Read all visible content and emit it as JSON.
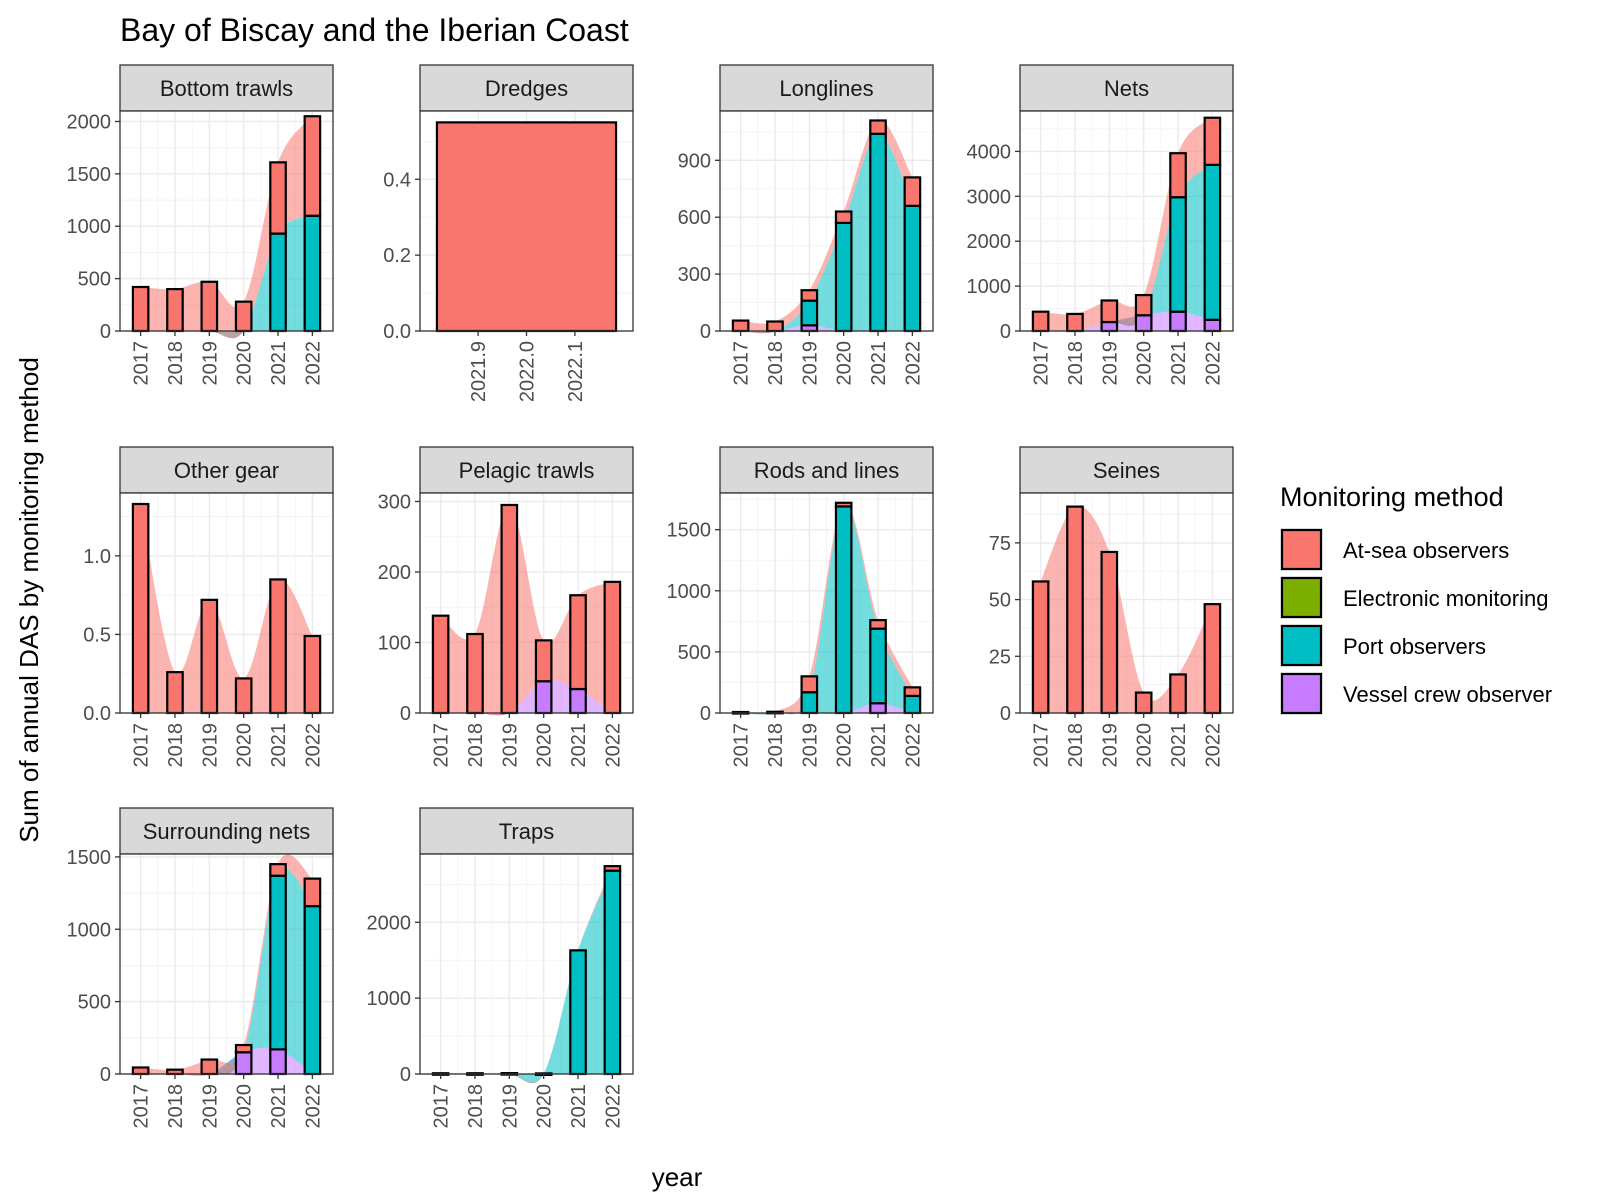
{
  "title": "Bay of Biscay and the Iberian Coast",
  "xlabel": "year",
  "ylabel": "Sum of annual DAS by monitoring method",
  "legend": {
    "title": "Monitoring method",
    "placement": "right",
    "items": [
      {
        "name": "At-sea observers",
        "color": "#F8766D"
      },
      {
        "name": "Electronic monitoring",
        "color": "#7CAE00"
      },
      {
        "name": "Port observers",
        "color": "#00BFC4"
      },
      {
        "name": "Vessel crew observer",
        "color": "#C77CFF"
      }
    ]
  },
  "chart_data": {
    "type": "bar",
    "stacked": true,
    "with_smoothed_area": true,
    "grid": true,
    "facets": [
      {
        "name": "Bottom trawls",
        "x": [
          "2017",
          "2018",
          "2019",
          "2020",
          "2021",
          "2022"
        ],
        "yticks": [
          0,
          500,
          1000,
          1500,
          2000
        ],
        "ylim": [
          0,
          2100
        ],
        "series": [
          {
            "name": "At-sea observers",
            "values": [
              420,
              400,
              470,
              280,
              680,
              950
            ]
          },
          {
            "name": "Port observers",
            "values": [
              0,
              0,
              0,
              0,
              930,
              1100
            ]
          }
        ]
      },
      {
        "name": "Dredges",
        "x": [
          "2021.9",
          "2022.0",
          "2022.1"
        ],
        "continuous_x": true,
        "xlim": [
          2021.78,
          2022.22
        ],
        "bar_x": 2022.0,
        "bar_width": 0.37,
        "yticks": [
          0.0,
          0.2,
          0.4
        ],
        "ylim": [
          0,
          0.58
        ],
        "series": [
          {
            "name": "At-sea observers",
            "values": [
              0.55
            ]
          }
        ]
      },
      {
        "name": "Longlines",
        "x": [
          "2017",
          "2018",
          "2019",
          "2020",
          "2021",
          "2022"
        ],
        "yticks": [
          0,
          300,
          600,
          900
        ],
        "ylim": [
          0,
          1160
        ],
        "series": [
          {
            "name": "At-sea observers",
            "values": [
              55,
              50,
              55,
              60,
              70,
              150
            ]
          },
          {
            "name": "Port observers",
            "values": [
              0,
              0,
              130,
              570,
              1040,
              660
            ]
          },
          {
            "name": "Vessel crew observer",
            "values": [
              0,
              0,
              30,
              0,
              0,
              0
            ]
          }
        ]
      },
      {
        "name": "Nets",
        "x": [
          "2017",
          "2018",
          "2019",
          "2020",
          "2021",
          "2022"
        ],
        "yticks": [
          0,
          1000,
          2000,
          3000,
          4000
        ],
        "ylim": [
          0,
          4900
        ],
        "series": [
          {
            "name": "At-sea observers",
            "values": [
              430,
              380,
              480,
              450,
              980,
              1050
            ]
          },
          {
            "name": "Port observers",
            "values": [
              0,
              0,
              0,
              0,
              2550,
              3450
            ]
          },
          {
            "name": "Vessel crew observer",
            "values": [
              0,
              0,
              200,
              350,
              430,
              250
            ]
          }
        ]
      },
      {
        "name": "Other gear",
        "x": [
          "2017",
          "2018",
          "2019",
          "2020",
          "2021",
          "2022"
        ],
        "yticks": [
          0.0,
          0.5,
          1.0
        ],
        "ylim": [
          0,
          1.4
        ],
        "series": [
          {
            "name": "At-sea observers",
            "values": [
              1.33,
              0.26,
              0.72,
              0.22,
              0.85,
              0.49
            ]
          }
        ]
      },
      {
        "name": "Pelagic trawls",
        "x": [
          "2017",
          "2018",
          "2019",
          "2020",
          "2021",
          "2022"
        ],
        "yticks": [
          0,
          100,
          200,
          300
        ],
        "ylim": [
          0,
          312
        ],
        "series": [
          {
            "name": "At-sea observers",
            "values": [
              138,
              112,
              295,
              58,
              133,
              186
            ]
          },
          {
            "name": "Vessel crew observer",
            "values": [
              0,
              0,
              0,
              45,
              34,
              0
            ]
          }
        ]
      },
      {
        "name": "Rods and lines",
        "x": [
          "2017",
          "2018",
          "2019",
          "2020",
          "2021",
          "2022"
        ],
        "yticks": [
          0,
          500,
          1000,
          1500
        ],
        "ylim": [
          0,
          1800
        ],
        "series": [
          {
            "name": "At-sea observers",
            "values": [
              8,
              10,
              130,
              30,
              70,
              70
            ]
          },
          {
            "name": "Port observers",
            "values": [
              0,
              0,
              170,
              1690,
              610,
              140
            ]
          },
          {
            "name": "Vessel crew observer",
            "values": [
              0,
              0,
              0,
              0,
              80,
              0
            ]
          }
        ]
      },
      {
        "name": "Seines",
        "x": [
          "2017",
          "2018",
          "2019",
          "2020",
          "2021",
          "2022"
        ],
        "yticks": [
          0,
          25,
          50,
          75
        ],
        "ylim": [
          0,
          97
        ],
        "series": [
          {
            "name": "At-sea observers",
            "values": [
              58,
              91,
              71,
              9,
              17,
              48
            ]
          }
        ]
      },
      {
        "name": "Surrounding nets",
        "x": [
          "2017",
          "2018",
          "2019",
          "2020",
          "2021",
          "2022"
        ],
        "yticks": [
          0,
          500,
          1000,
          1500
        ],
        "ylim": [
          0,
          1520
        ],
        "series": [
          {
            "name": "At-sea observers",
            "values": [
              45,
              30,
              100,
              50,
              80,
              190
            ]
          },
          {
            "name": "Port observers",
            "values": [
              0,
              0,
              0,
              0,
              1200,
              1160
            ]
          },
          {
            "name": "Vessel crew observer",
            "values": [
              0,
              0,
              0,
              150,
              170,
              0
            ]
          }
        ]
      },
      {
        "name": "Traps",
        "x": [
          "2017",
          "2018",
          "2019",
          "2020",
          "2021",
          "2022"
        ],
        "yticks": [
          0,
          1000,
          2000
        ],
        "ylim": [
          0,
          2900
        ],
        "series": [
          {
            "name": "At-sea observers",
            "values": [
              10,
              10,
              12,
              8,
              0,
              60
            ]
          },
          {
            "name": "Port observers",
            "values": [
              0,
              0,
              0,
              0,
              1630,
              2680
            ]
          }
        ]
      }
    ]
  }
}
